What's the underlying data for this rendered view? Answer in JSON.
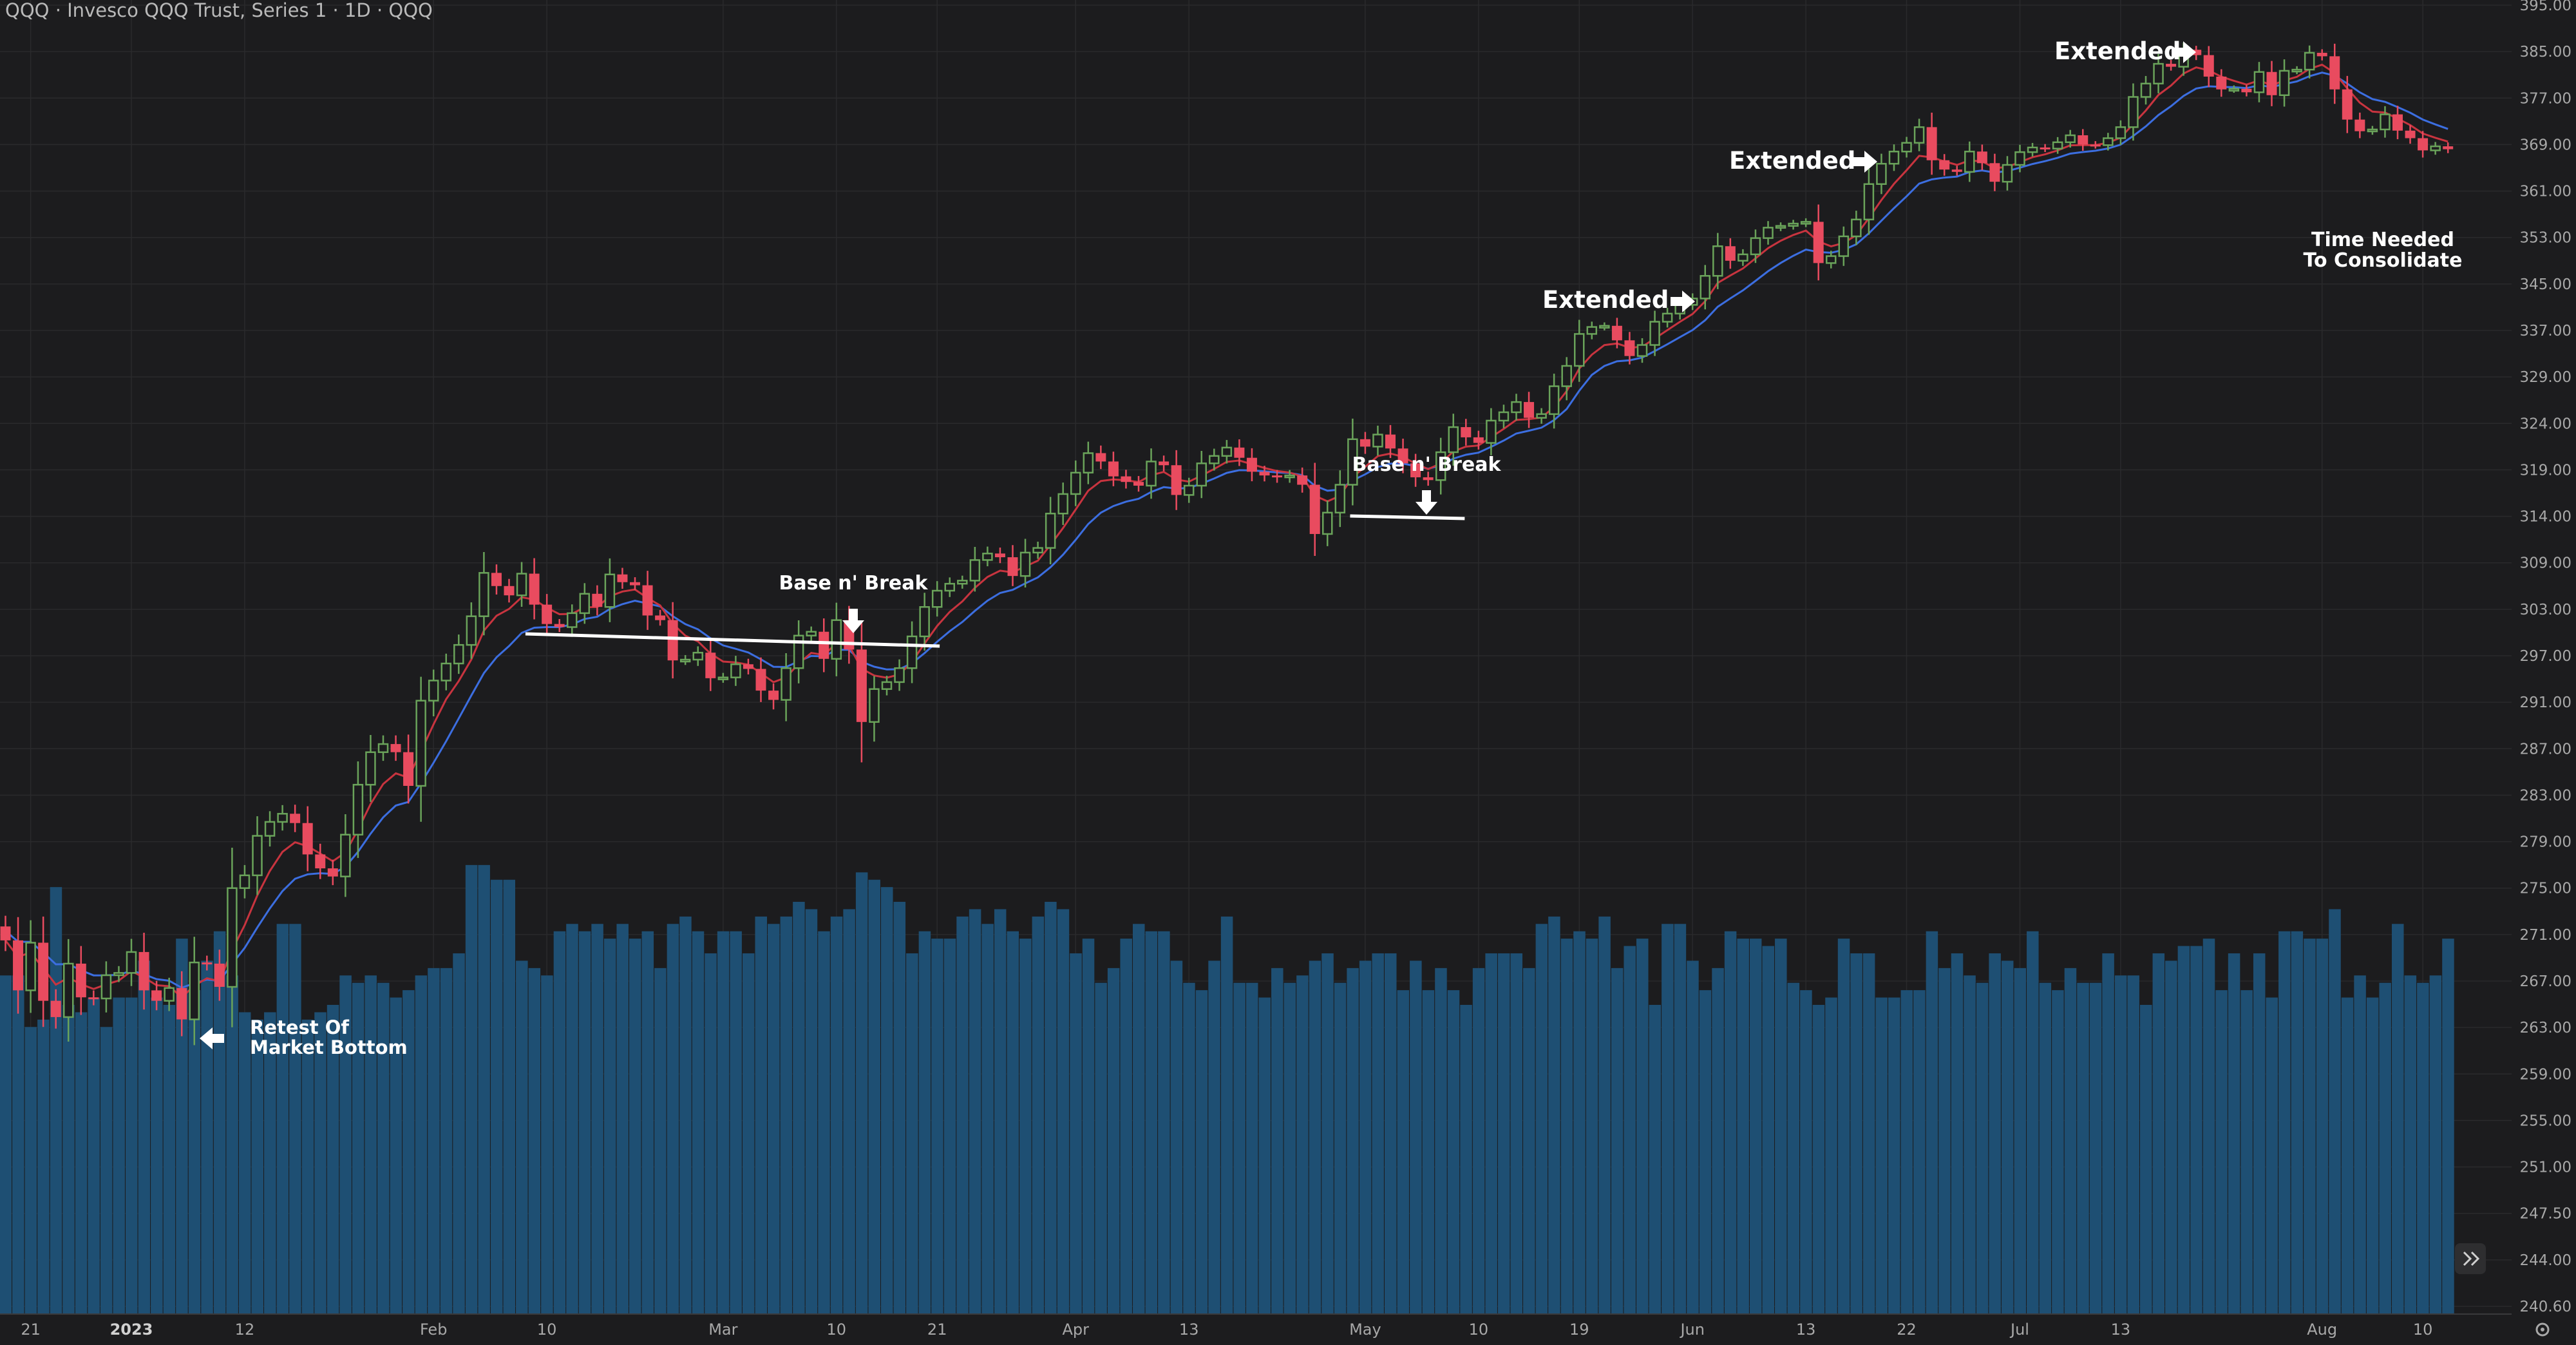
{
  "header": {
    "title": "QQQ · Invesco QQQ Trust, Series 1 · 1D · QQQ"
  },
  "colors": {
    "background": "#1c1c1e",
    "grid": "#2a2a2c",
    "up": "#6aa35a",
    "down": "#e94b5f",
    "volume": "#1e4f73",
    "ema_fast": "#c8343f",
    "ema_slow": "#3c6ee0",
    "text": "#a8a8a8",
    "annotation": "#ffffff"
  },
  "chart_data": {
    "type": "candlestick",
    "title": "QQQ · Invesco QQQ Trust, Series 1 · 1D · QQQ",
    "ylim": [
      237,
      395
    ],
    "y_ticks": [
      "395.00",
      "385.00",
      "377.00",
      "369.00",
      "361.00",
      "353.00",
      "345.00",
      "337.00",
      "329.00",
      "324.00",
      "319.00",
      "314.00",
      "309.00",
      "303.00",
      "297.00",
      "291.00",
      "287.00",
      "283.00",
      "279.00",
      "275.00",
      "271.00",
      "267.00",
      "263.00",
      "259.00",
      "255.00",
      "251.00",
      "247.50",
      "244.00",
      "240.60"
    ],
    "y_tick_values": [
      395,
      385,
      377,
      369,
      361,
      353,
      345,
      337,
      329,
      324,
      319,
      314,
      309,
      303,
      297,
      291,
      287,
      283,
      279,
      275,
      271,
      267,
      263,
      259,
      255,
      251,
      247.5,
      244,
      240.6
    ],
    "x_ticks": [
      {
        "label": "21",
        "bar": 2
      },
      {
        "label": "2023",
        "bar": 10,
        "bold": true
      },
      {
        "label": "12",
        "bar": 19
      },
      {
        "label": "Feb",
        "bar": 34
      },
      {
        "label": "10",
        "bar": 43
      },
      {
        "label": "Mar",
        "bar": 57
      },
      {
        "label": "10",
        "bar": 66
      },
      {
        "label": "21",
        "bar": 74
      },
      {
        "label": "Apr",
        "bar": 85
      },
      {
        "label": "13",
        "bar": 94
      },
      {
        "label": "May",
        "bar": 108
      },
      {
        "label": "10",
        "bar": 117
      },
      {
        "label": "19",
        "bar": 125
      },
      {
        "label": "Jun",
        "bar": 134
      },
      {
        "label": "13",
        "bar": 143
      },
      {
        "label": "22",
        "bar": 151
      },
      {
        "label": "Jul",
        "bar": 160
      },
      {
        "label": "13",
        "bar": 168
      },
      {
        "label": "Aug",
        "bar": 184
      },
      {
        "label": "10",
        "bar": 192
      }
    ],
    "closes": [
      270.5,
      266.2,
      270.3,
      265.3,
      263.9,
      268.5,
      265.6,
      265.5,
      267.5,
      267.7,
      269.5,
      266.2,
      265.3,
      266.4,
      263.7,
      268.6,
      268.5,
      266.5,
      275,
      276.1,
      279.5,
      280.7,
      281.4,
      280.6,
      277.9,
      276.7,
      276,
      279.6,
      283.9,
      286.7,
      287.4,
      286.7,
      283.8,
      291.2,
      293.8,
      296,
      298.4,
      302.1,
      307.7,
      306,
      304.8,
      307.6,
      303.6,
      301.1,
      300.7,
      302.5,
      305,
      303.3,
      307.5,
      306.5,
      306.1,
      302.2,
      301.6,
      296.4,
      296.5,
      297.4,
      294.1,
      294.2,
      295.9,
      295.3,
      292.5,
      291.3,
      295.4,
      299.6,
      300.1,
      296.6,
      301.6,
      297.8,
      289.3,
      292.7,
      293.6,
      295.4,
      299.5,
      303.3,
      305.4,
      306.3,
      306.7,
      309.3,
      310,
      309.6,
      307.3,
      310.1,
      310.6,
      314.3,
      316.4,
      318.7,
      320.8,
      319.9,
      318.3,
      317.7,
      317.3,
      319.9,
      319.5,
      316.3,
      317.3,
      319.7,
      320.5,
      321.4,
      320.3,
      318.8,
      318.4,
      318.2,
      318.4,
      317.4,
      312.1,
      314.4,
      317.4,
      322.3,
      321.5,
      322.8,
      321.3,
      319.7,
      318.2,
      317.9,
      320.9,
      323.6,
      322.5,
      321.9,
      324.3,
      325.2,
      326.3,
      324.6,
      325,
      328,
      330.9,
      336.4,
      337.6,
      337.8,
      335.3,
      332.6,
      334.5,
      338.5,
      339.9,
      341.4,
      342.5,
      346.4,
      351.5,
      349,
      350.1,
      352.9,
      354.7,
      355,
      355.4,
      355.7,
      348.6,
      349.8,
      353.2,
      356.1,
      362.2,
      365.7,
      367.8,
      369.3,
      372,
      366.3,
      364.7,
      364.3,
      367.8,
      365.8,
      362.6,
      365.5,
      367.7,
      368.5,
      368.3,
      369.4,
      370.6,
      369,
      368.9,
      370.1,
      372,
      377.2,
      379.5,
      382.9,
      382.4,
      385.4,
      384.4,
      380.7,
      378.5,
      378.6,
      378,
      381.5,
      377.5,
      381.7,
      381.9,
      384.8,
      384.2,
      378.5,
      373.3,
      371.3,
      371.6,
      374.2,
      371.4,
      370.1,
      368,
      368.7,
      368.2
    ],
    "volume_values": [
      46,
      46,
      39,
      40,
      58,
      42,
      41,
      43,
      39,
      43,
      43,
      48,
      43,
      42,
      51,
      44,
      48,
      52,
      46,
      41,
      40,
      41,
      53,
      53,
      40,
      41,
      42,
      46,
      45,
      46,
      45,
      43,
      44,
      46,
      47,
      47,
      49,
      61,
      61,
      59,
      59,
      48,
      47,
      46,
      52,
      53,
      52,
      53,
      51,
      53,
      51,
      52,
      47,
      53,
      54,
      52,
      49,
      52,
      52,
      49,
      54,
      53,
      54,
      56,
      55,
      52,
      54,
      55,
      60,
      59,
      58,
      56,
      49,
      52,
      51,
      51,
      54,
      55,
      53,
      55,
      52,
      51,
      54,
      56,
      55,
      49,
      51,
      45,
      47,
      51,
      53,
      52,
      52,
      48,
      45,
      44,
      48,
      54,
      45,
      45,
      43,
      47,
      45,
      46,
      48,
      49,
      45,
      47,
      48,
      49,
      49,
      44,
      48,
      44,
      47,
      44,
      42,
      47,
      49,
      49,
      49,
      47,
      53,
      54,
      51,
      52,
      51,
      54,
      47,
      50,
      51,
      42,
      53,
      53,
      48,
      44,
      47,
      52,
      51,
      51,
      50,
      51,
      45,
      44,
      42,
      43,
      51,
      49,
      49,
      43,
      43,
      44,
      44,
      52,
      47,
      49,
      46,
      45,
      49,
      48,
      47,
      52,
      45,
      44,
      47,
      45,
      45,
      49,
      46,
      46,
      42,
      49,
      48,
      50,
      50,
      51,
      44,
      49,
      44,
      49,
      43,
      52,
      52,
      51,
      51,
      55,
      43,
      46,
      43,
      45,
      53,
      46,
      45,
      46,
      51
    ],
    "volume_ylim": [
      0,
      70
    ],
    "series": [
      {
        "name": "QQQ",
        "type": "candlestick"
      },
      {
        "type": "line",
        "style": "ema_fast"
      },
      {
        "type": "line",
        "style": "ema_slow"
      }
    ]
  },
  "annotations": [
    {
      "id": "retest",
      "lines": [
        "Retest Of",
        "Market Bottom"
      ],
      "arrow": "left"
    },
    {
      "id": "base-1",
      "lines": [
        "Base n' Break"
      ],
      "arrow": "down"
    },
    {
      "id": "base-2",
      "lines": [
        "Base n' Break"
      ],
      "arrow": "down"
    },
    {
      "id": "ext-1",
      "lines": [
        "Extended"
      ],
      "arrow": "right"
    },
    {
      "id": "ext-2",
      "lines": [
        "Extended"
      ],
      "arrow": "right"
    },
    {
      "id": "ext-3",
      "lines": [
        "Extended"
      ],
      "arrow": "right"
    },
    {
      "id": "consolidate",
      "lines": [
        "Time Needed",
        "To Consolidate"
      ],
      "arrow": "none"
    }
  ],
  "icons": {
    "scroll": "double-chevron-right-icon",
    "settings": "gear-icon"
  }
}
